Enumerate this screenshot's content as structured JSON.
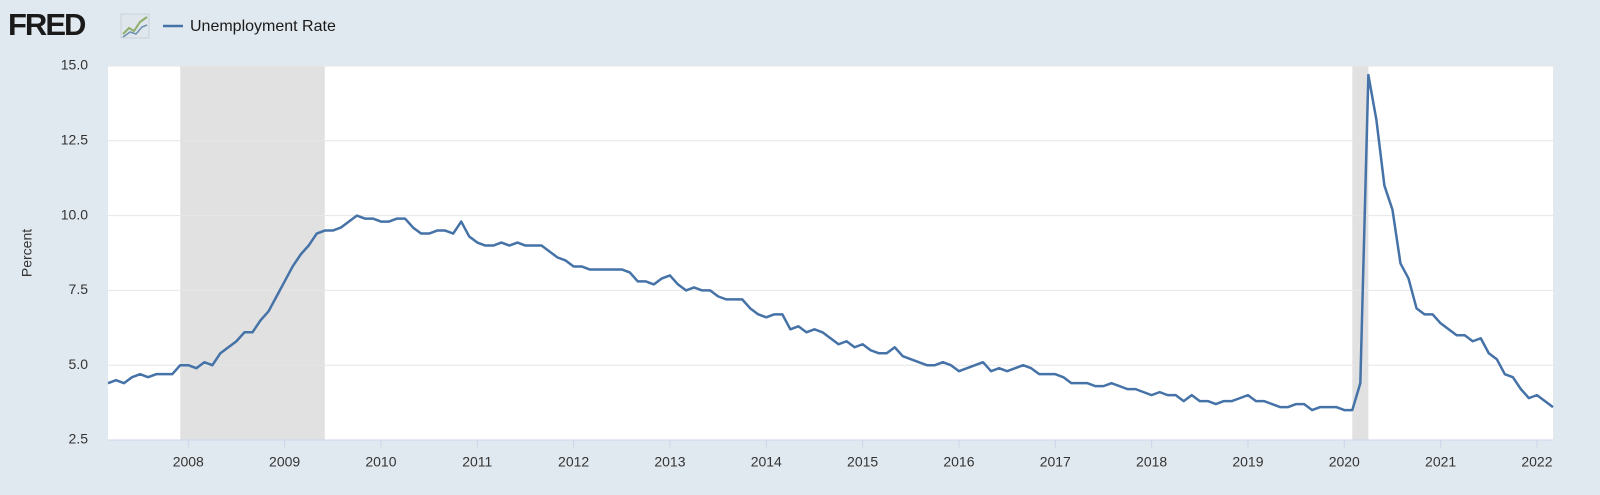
{
  "logo": "FRED",
  "chart_data": {
    "type": "line",
    "y_label": "Percent",
    "x": [
      "2007-03",
      "2007-04",
      "2007-05",
      "2007-06",
      "2007-07",
      "2007-08",
      "2007-09",
      "2007-10",
      "2007-11",
      "2007-12",
      "2008-01",
      "2008-02",
      "2008-03",
      "2008-04",
      "2008-05",
      "2008-06",
      "2008-07",
      "2008-08",
      "2008-09",
      "2008-10",
      "2008-11",
      "2008-12",
      "2009-01",
      "2009-02",
      "2009-03",
      "2009-04",
      "2009-05",
      "2009-06",
      "2009-07",
      "2009-08",
      "2009-09",
      "2009-10",
      "2009-11",
      "2009-12",
      "2010-01",
      "2010-02",
      "2010-03",
      "2010-04",
      "2010-05",
      "2010-06",
      "2010-07",
      "2010-08",
      "2010-09",
      "2010-10",
      "2010-11",
      "2010-12",
      "2011-01",
      "2011-02",
      "2011-03",
      "2011-04",
      "2011-05",
      "2011-06",
      "2011-07",
      "2011-08",
      "2011-09",
      "2011-10",
      "2011-11",
      "2011-12",
      "2012-01",
      "2012-02",
      "2012-03",
      "2012-04",
      "2012-05",
      "2012-06",
      "2012-07",
      "2012-08",
      "2012-09",
      "2012-10",
      "2012-11",
      "2012-12",
      "2013-01",
      "2013-02",
      "2013-03",
      "2013-04",
      "2013-05",
      "2013-06",
      "2013-07",
      "2013-08",
      "2013-09",
      "2013-10",
      "2013-11",
      "2013-12",
      "2014-01",
      "2014-02",
      "2014-03",
      "2014-04",
      "2014-05",
      "2014-06",
      "2014-07",
      "2014-08",
      "2014-09",
      "2014-10",
      "2014-11",
      "2014-12",
      "2015-01",
      "2015-02",
      "2015-03",
      "2015-04",
      "2015-05",
      "2015-06",
      "2015-07",
      "2015-08",
      "2015-09",
      "2015-10",
      "2015-11",
      "2015-12",
      "2016-01",
      "2016-02",
      "2016-03",
      "2016-04",
      "2016-05",
      "2016-06",
      "2016-07",
      "2016-08",
      "2016-09",
      "2016-10",
      "2016-11",
      "2016-12",
      "2017-01",
      "2017-02",
      "2017-03",
      "2017-04",
      "2017-05",
      "2017-06",
      "2017-07",
      "2017-08",
      "2017-09",
      "2017-10",
      "2017-11",
      "2017-12",
      "2018-01",
      "2018-02",
      "2018-03",
      "2018-04",
      "2018-05",
      "2018-06",
      "2018-07",
      "2018-08",
      "2018-09",
      "2018-10",
      "2018-11",
      "2018-12",
      "2019-01",
      "2019-02",
      "2019-03",
      "2019-04",
      "2019-05",
      "2019-06",
      "2019-07",
      "2019-08",
      "2019-09",
      "2019-10",
      "2019-11",
      "2019-12",
      "2020-01",
      "2020-02",
      "2020-03",
      "2020-04",
      "2020-05",
      "2020-06",
      "2020-07",
      "2020-08",
      "2020-09",
      "2020-10",
      "2020-11",
      "2020-12",
      "2021-01",
      "2021-02",
      "2021-03",
      "2021-04",
      "2021-05",
      "2021-06",
      "2021-07",
      "2021-08",
      "2021-09",
      "2021-10",
      "2021-11",
      "2021-12",
      "2022-01",
      "2022-02",
      "2022-03"
    ],
    "series": [
      {
        "name": "Unemployment Rate",
        "color": "#4572a7",
        "values": [
          4.4,
          4.5,
          4.4,
          4.6,
          4.7,
          4.6,
          4.7,
          4.7,
          4.7,
          5.0,
          5.0,
          4.9,
          5.1,
          5.0,
          5.4,
          5.6,
          5.8,
          6.1,
          6.1,
          6.5,
          6.8,
          7.3,
          7.8,
          8.3,
          8.7,
          9.0,
          9.4,
          9.5,
          9.5,
          9.6,
          9.8,
          10.0,
          9.9,
          9.9,
          9.8,
          9.8,
          9.9,
          9.9,
          9.6,
          9.4,
          9.4,
          9.5,
          9.5,
          9.4,
          9.8,
          9.3,
          9.1,
          9.0,
          9.0,
          9.1,
          9.0,
          9.1,
          9.0,
          9.0,
          9.0,
          8.8,
          8.6,
          8.5,
          8.3,
          8.3,
          8.2,
          8.2,
          8.2,
          8.2,
          8.2,
          8.1,
          7.8,
          7.8,
          7.7,
          7.9,
          8.0,
          7.7,
          7.5,
          7.6,
          7.5,
          7.5,
          7.3,
          7.2,
          7.2,
          7.2,
          6.9,
          6.7,
          6.6,
          6.7,
          6.7,
          6.2,
          6.3,
          6.1,
          6.2,
          6.1,
          5.9,
          5.7,
          5.8,
          5.6,
          5.7,
          5.5,
          5.4,
          5.4,
          5.6,
          5.3,
          5.2,
          5.1,
          5.0,
          5.0,
          5.1,
          5.0,
          4.8,
          4.9,
          5.0,
          5.1,
          4.8,
          4.9,
          4.8,
          4.9,
          5.0,
          4.9,
          4.7,
          4.7,
          4.7,
          4.6,
          4.4,
          4.4,
          4.4,
          4.3,
          4.3,
          4.4,
          4.3,
          4.2,
          4.2,
          4.1,
          4.0,
          4.1,
          4.0,
          4.0,
          3.8,
          4.0,
          3.8,
          3.8,
          3.7,
          3.8,
          3.8,
          3.9,
          4.0,
          3.8,
          3.8,
          3.7,
          3.6,
          3.6,
          3.7,
          3.7,
          3.5,
          3.6,
          3.6,
          3.6,
          3.5,
          3.5,
          4.4,
          14.7,
          13.2,
          11.0,
          10.2,
          8.4,
          7.9,
          6.9,
          6.7,
          6.7,
          6.4,
          6.2,
          6.0,
          6.0,
          5.8,
          5.9,
          5.4,
          5.2,
          4.7,
          4.6,
          4.2,
          3.9,
          4.0,
          3.8,
          3.6
        ]
      }
    ],
    "recessions": [
      [
        "2007-12",
        "2009-06"
      ],
      [
        "2020-02",
        "2020-04"
      ]
    ],
    "xlim": [
      "2007-03",
      "2022-03"
    ],
    "xticks": [
      2008,
      2009,
      2010,
      2011,
      2012,
      2013,
      2014,
      2015,
      2016,
      2017,
      2018,
      2019,
      2020,
      2021,
      2022
    ],
    "ylim": [
      2.5,
      15
    ],
    "yticks": [
      {
        "value": 2.5,
        "label": "2.5"
      },
      {
        "value": 5,
        "label": "5.0"
      },
      {
        "value": 7.5,
        "label": "7.5"
      },
      {
        "value": 10,
        "label": "10.0"
      },
      {
        "value": 12.5,
        "label": "12.5"
      },
      {
        "value": 15,
        "label": "15.0"
      }
    ],
    "grid": true
  }
}
